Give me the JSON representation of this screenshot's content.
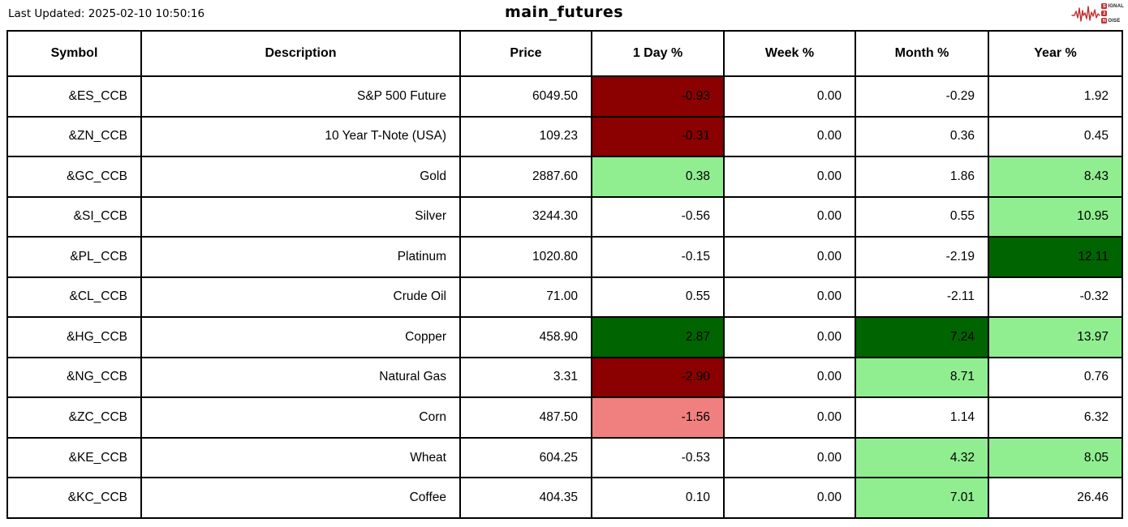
{
  "chart_data": {
    "type": "table",
    "title": "main_futures",
    "last_updated": "Last Updated: 2025-02-10 10:50:16",
    "columns": [
      "Symbol",
      "Description",
      "Price",
      "1 Day %",
      "Week %",
      "Month %",
      "Year %"
    ],
    "column_keys": [
      "symbol",
      "description",
      "price",
      "day_pct",
      "week_pct",
      "month_pct",
      "year_pct"
    ],
    "cell_colors": {
      "strong_negative": "#8b0000",
      "mild_negative": "#f08080",
      "strong_positive": "#006400",
      "mild_positive": "#90ee90",
      "neutral": "#ffffff"
    },
    "rows": [
      {
        "cells": [
          {
            "text": "&ES_CCB"
          },
          {
            "text": "S&P 500 Future"
          },
          {
            "text": "6049.50"
          },
          {
            "text": "-0.93",
            "bg": "strong_negative"
          },
          {
            "text": "0.00"
          },
          {
            "text": "-0.29"
          },
          {
            "text": "1.92"
          }
        ]
      },
      {
        "cells": [
          {
            "text": "&ZN_CCB"
          },
          {
            "text": "10 Year T-Note (USA)"
          },
          {
            "text": "109.23"
          },
          {
            "text": "-0.31",
            "bg": "strong_negative"
          },
          {
            "text": "0.00"
          },
          {
            "text": "0.36"
          },
          {
            "text": "0.45"
          }
        ]
      },
      {
        "cells": [
          {
            "text": "&GC_CCB"
          },
          {
            "text": "Gold"
          },
          {
            "text": "2887.60"
          },
          {
            "text": "0.38",
            "bg": "mild_positive"
          },
          {
            "text": "0.00"
          },
          {
            "text": "1.86"
          },
          {
            "text": "8.43",
            "bg": "mild_positive"
          }
        ]
      },
      {
        "cells": [
          {
            "text": "&SI_CCB"
          },
          {
            "text": "Silver"
          },
          {
            "text": "3244.30"
          },
          {
            "text": "-0.56"
          },
          {
            "text": "0.00"
          },
          {
            "text": "0.55"
          },
          {
            "text": "10.95",
            "bg": "mild_positive"
          }
        ]
      },
      {
        "cells": [
          {
            "text": "&PL_CCB"
          },
          {
            "text": "Platinum"
          },
          {
            "text": "1020.80"
          },
          {
            "text": "-0.15"
          },
          {
            "text": "0.00"
          },
          {
            "text": "-2.19"
          },
          {
            "text": "12.11",
            "bg": "strong_positive"
          }
        ]
      },
      {
        "cells": [
          {
            "text": "&CL_CCB"
          },
          {
            "text": "Crude Oil"
          },
          {
            "text": "71.00"
          },
          {
            "text": "0.55"
          },
          {
            "text": "0.00"
          },
          {
            "text": "-2.11"
          },
          {
            "text": "-0.32"
          }
        ]
      },
      {
        "cells": [
          {
            "text": "&HG_CCB"
          },
          {
            "text": "Copper"
          },
          {
            "text": "458.90"
          },
          {
            "text": "2.87",
            "bg": "strong_positive"
          },
          {
            "text": "0.00"
          },
          {
            "text": "7.24",
            "bg": "strong_positive"
          },
          {
            "text": "13.97",
            "bg": "mild_positive"
          }
        ]
      },
      {
        "cells": [
          {
            "text": "&NG_CCB"
          },
          {
            "text": "Natural Gas"
          },
          {
            "text": "3.31"
          },
          {
            "text": "-2.90",
            "bg": "strong_negative"
          },
          {
            "text": "0.00"
          },
          {
            "text": "8.71",
            "bg": "mild_positive"
          },
          {
            "text": "0.76"
          }
        ]
      },
      {
        "cells": [
          {
            "text": "&ZC_CCB"
          },
          {
            "text": "Corn"
          },
          {
            "text": "487.50"
          },
          {
            "text": "-1.56",
            "bg": "mild_negative"
          },
          {
            "text": "0.00"
          },
          {
            "text": "1.14"
          },
          {
            "text": "6.32"
          }
        ]
      },
      {
        "cells": [
          {
            "text": "&KE_CCB"
          },
          {
            "text": "Wheat"
          },
          {
            "text": "604.25"
          },
          {
            "text": "-0.53"
          },
          {
            "text": "0.00"
          },
          {
            "text": "4.32",
            "bg": "mild_positive"
          },
          {
            "text": "8.05",
            "bg": "mild_positive"
          }
        ]
      },
      {
        "cells": [
          {
            "text": "&KC_CCB"
          },
          {
            "text": "Coffee"
          },
          {
            "text": "404.35"
          },
          {
            "text": "0.10"
          },
          {
            "text": "0.00"
          },
          {
            "text": "7.01",
            "bg": "mild_positive"
          },
          {
            "text": "26.46"
          }
        ]
      }
    ]
  },
  "logo": {
    "name": "signal-2-noise",
    "accent_color": "#c22f2f",
    "line1_badge": "S",
    "line1_rest": "IGNAL",
    "line2_badge": "2",
    "line2_rest": "",
    "line3_badge": "N",
    "line3_rest": "OISE"
  }
}
